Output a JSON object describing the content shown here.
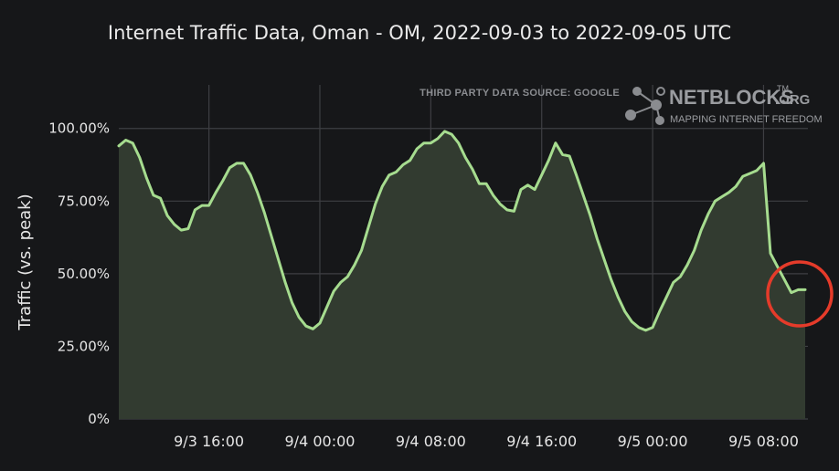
{
  "chart_data": {
    "type": "area",
    "title": "Internet Traffic Data, Oman - OM, 2022-09-03 to 2022-09-05 UTC",
    "ylabel": "Traffic (vs. peak)",
    "xlabel": "",
    "ylim": [
      0,
      115
    ],
    "xlim": [
      -14.5,
      35.2
    ],
    "y_ticks": [
      0,
      25,
      50,
      75,
      100
    ],
    "y_tick_labels": [
      "0%",
      "25.00%",
      "50.00%",
      "75.00%",
      "100.00%"
    ],
    "x_ticks": [
      -8,
      0,
      8,
      16,
      24,
      32
    ],
    "x_tick_labels": [
      "9/3 16:00",
      "9/4 00:00",
      "9/4 08:00",
      "9/4 16:00",
      "9/5 00:00",
      "9/5 08:00"
    ],
    "grid": true,
    "series": [
      {
        "line_color": "#a6dc8f",
        "fill_color": "#323b30",
        "x": [
          -14.5,
          -14,
          -13.5,
          -13,
          -12.5,
          -12,
          -11.5,
          -11,
          -10.5,
          -10,
          -9.5,
          -9,
          -8.5,
          -8,
          -7.5,
          -7,
          -6.5,
          -6,
          -5.5,
          -5,
          -4.5,
          -4,
          -3.5,
          -3,
          -2.5,
          -2,
          -1.5,
          -1,
          -0.5,
          0,
          0.5,
          1,
          1.5,
          2,
          2.5,
          3,
          3.5,
          4,
          4.5,
          5,
          5.5,
          6,
          6.5,
          7,
          7.5,
          8,
          8.5,
          9,
          9.5,
          10,
          10.5,
          11,
          11.5,
          12,
          12.5,
          13,
          13.5,
          14,
          14.5,
          15,
          15.5,
          16,
          16.5,
          17,
          17.5,
          18,
          18.5,
          19,
          19.5,
          20,
          20.5,
          21,
          21.5,
          22,
          22.5,
          23,
          23.5,
          24,
          24.5,
          25,
          25.5,
          26,
          26.5,
          27,
          27.5,
          28,
          28.5,
          29,
          29.5,
          30,
          30.5,
          31,
          31.5,
          32,
          32.5,
          33,
          33.5,
          34,
          34.5,
          35
        ],
        "values": [
          94,
          96,
          95,
          90,
          83,
          77,
          76,
          70,
          67,
          65,
          65.5,
          72,
          73.5,
          73.5,
          78,
          82,
          86.5,
          88,
          88,
          84,
          78,
          71,
          63,
          55,
          47,
          40,
          35,
          32,
          31,
          33,
          38.5,
          44,
          47,
          49,
          53,
          58,
          66,
          74,
          80,
          84,
          85,
          87.5,
          89,
          93,
          95,
          95,
          96.5,
          99,
          98,
          95,
          90,
          86,
          81,
          81,
          77,
          74,
          72,
          71.5,
          79,
          80.5,
          79,
          84,
          89,
          95,
          91,
          90.5,
          84,
          77,
          70,
          62,
          55,
          48,
          42,
          37,
          33.5,
          31.5,
          30.5,
          31.5,
          37,
          42,
          47,
          49,
          53,
          58,
          65,
          70.5,
          75,
          76.5,
          78,
          80,
          83.5,
          84.5,
          85.5,
          88,
          57,
          52.5,
          48,
          43.5,
          44.5,
          44.5
        ]
      }
    ],
    "annotation_color": "#e53b2a",
    "source_note": "THIRD PARTY DATA SOURCE: GOOGLE",
    "brand": {
      "name": "NETBLOCKS",
      "tm": "TM",
      "org": ".ORG",
      "tagline": "MAPPING INTERNET FREEDOM"
    }
  }
}
